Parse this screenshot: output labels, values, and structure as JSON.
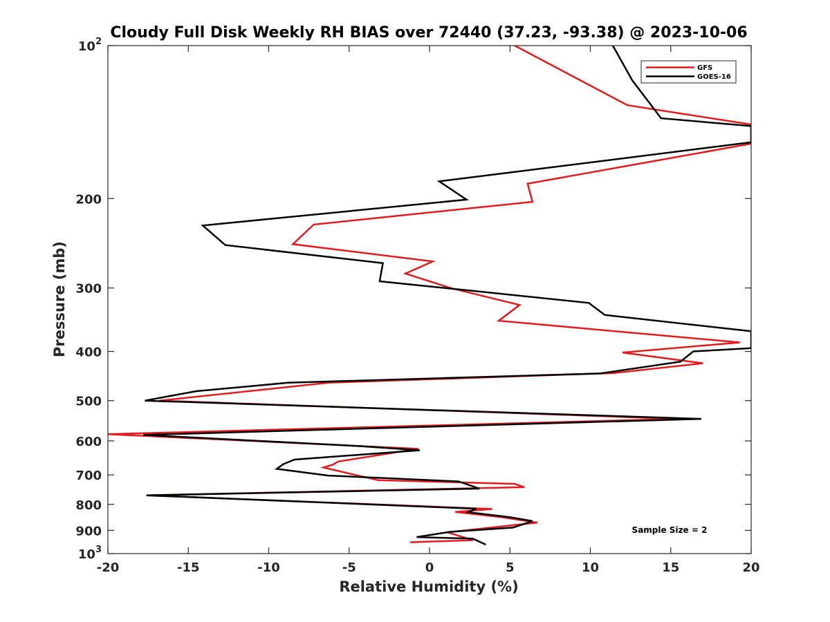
{
  "chart_data": {
    "type": "line",
    "title": "Cloudy Full Disk Weekly RH BIAS over 72440 (37.23, -93.38) @ 2023-10-06",
    "xlabel": "Relative Humidity (%)",
    "ylabel": "Pressure (mb)",
    "xlim": [
      -20,
      20
    ],
    "ylim": [
      100,
      1000
    ],
    "y_scale": "log",
    "y_reversed": true,
    "x_ticks": [
      -20,
      -15,
      -10,
      -5,
      0,
      5,
      10,
      15,
      20
    ],
    "x_tick_labels": [
      "-20",
      "-15",
      "-10",
      "-5",
      "0",
      "5",
      "10",
      "15",
      "20"
    ],
    "y_ticks": [
      {
        "value": 100,
        "base": "10",
        "exp": "2"
      },
      {
        "value": 200,
        "label": "200"
      },
      {
        "value": 300,
        "label": "300"
      },
      {
        "value": 400,
        "label": "400"
      },
      {
        "value": 500,
        "label": "500"
      },
      {
        "value": 600,
        "label": "600"
      },
      {
        "value": 700,
        "label": "700"
      },
      {
        "value": 800,
        "label": "800"
      },
      {
        "value": 900,
        "label": "900"
      },
      {
        "value": 1000,
        "base": "10",
        "exp": "3"
      }
    ],
    "grid": false,
    "legend": "top-right",
    "annotation": "Sample Size = 2",
    "series": [
      {
        "name": "GFS",
        "color": "#e41a1c",
        "points": [
          [
            5.3,
            100
          ],
          [
            12.3,
            131
          ],
          [
            20.0,
            143
          ],
          [
            20.0,
            156
          ],
          [
            6.1,
            187
          ],
          [
            6.4,
            203
          ],
          [
            -7.2,
            225
          ],
          [
            -8.5,
            246
          ],
          [
            0.2,
            266
          ],
          [
            -1.5,
            281
          ],
          [
            1.3,
            300
          ],
          [
            5.6,
            324
          ],
          [
            4.3,
            348
          ],
          [
            19.3,
            384
          ],
          [
            12.0,
            402
          ],
          [
            17.0,
            422
          ],
          [
            11.5,
            441
          ],
          [
            -6.3,
            461
          ],
          [
            -16.8,
            500
          ],
          [
            15.5,
            543
          ],
          [
            -20.0,
            582
          ],
          [
            -0.7,
            622
          ],
          [
            -5.7,
            659
          ],
          [
            -6.0,
            668
          ],
          [
            -6.6,
            677
          ],
          [
            -3.2,
            717
          ],
          [
            5.3,
            729
          ],
          [
            5.9,
            740
          ],
          [
            -17.6,
            768
          ],
          [
            3.9,
            817
          ],
          [
            1.6,
            828
          ],
          [
            4.5,
            848
          ],
          [
            6.7,
            869
          ],
          [
            1.1,
            908
          ],
          [
            2.7,
            941
          ],
          [
            -1.2,
            950
          ]
        ]
      },
      {
        "name": "GOES-16",
        "color": "#000000",
        "points": [
          [
            11.4,
            100
          ],
          [
            12.6,
            117
          ],
          [
            14.4,
            139
          ],
          [
            20.0,
            144
          ],
          [
            20.0,
            155
          ],
          [
            0.6,
            185
          ],
          [
            2.3,
            201
          ],
          [
            -14.1,
            226
          ],
          [
            -12.7,
            247
          ],
          [
            -2.9,
            268
          ],
          [
            -3.1,
            291
          ],
          [
            2.3,
            303
          ],
          [
            9.9,
            321
          ],
          [
            10.9,
            339
          ],
          [
            20.0,
            365
          ],
          [
            20.0,
            394
          ],
          [
            16.4,
            400
          ],
          [
            15.6,
            419
          ],
          [
            10.6,
            442
          ],
          [
            -8.8,
            461
          ],
          [
            -14.5,
            479
          ],
          [
            -17.7,
            500
          ],
          [
            16.9,
            543
          ],
          [
            -17.8,
            584
          ],
          [
            -4.5,
            614
          ],
          [
            -0.6,
            626
          ],
          [
            -8.4,
            653
          ],
          [
            -9.1,
            667
          ],
          [
            -9.5,
            681
          ],
          [
            -6.3,
            702
          ],
          [
            1.8,
            721
          ],
          [
            3.1,
            745
          ],
          [
            -17.6,
            768
          ],
          [
            2.9,
            816
          ],
          [
            2.4,
            829
          ],
          [
            5.0,
            848
          ],
          [
            6.4,
            863
          ],
          [
            5.2,
            889
          ],
          [
            1.3,
            906
          ],
          [
            -0.8,
            928
          ],
          [
            2.7,
            935
          ],
          [
            3.5,
            960
          ]
        ]
      }
    ]
  }
}
